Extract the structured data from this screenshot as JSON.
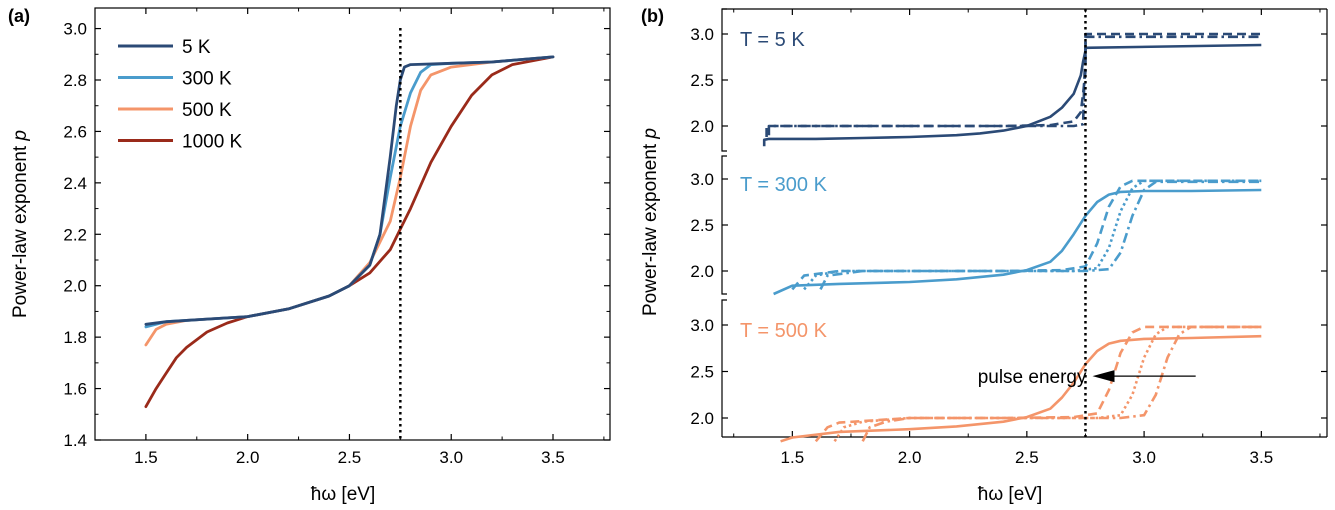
{
  "panel_a": {
    "label": "(a)",
    "ylabel": "Power-law exponent",
    "ylabel_var": "p",
    "xlabel": "ħω [eV]",
    "xticks": [
      "1.5",
      "2.0",
      "2.5",
      "3.0",
      "3.5"
    ],
    "yticks": [
      "1.4",
      "1.6",
      "1.8",
      "2.0",
      "2.2",
      "2.4",
      "2.6",
      "2.8",
      "3.0"
    ],
    "legend": [
      "5 K",
      "300 K",
      "500 K",
      "1000 K"
    ]
  },
  "panel_b": {
    "label": "(b)",
    "ylabel": "Power-law exponent",
    "ylabel_var": "p",
    "xlabel": "ħω [eV]",
    "xticks": [
      "1.5",
      "2.0",
      "2.5",
      "3.0",
      "3.5"
    ],
    "yticks": [
      "2.0",
      "2.5",
      "3.0"
    ],
    "subplot_labels": [
      "T = 5 K",
      "T = 300 K",
      "T = 500 K"
    ],
    "annotation": "pulse energy"
  },
  "colors": {
    "5 K": "#2b4a76",
    "300 K": "#4a9ccc",
    "500 K": "#f4956a",
    "1000 K": "#9a2a1a"
  },
  "chart_data": [
    {
      "type": "line",
      "title": "",
      "xlabel": "ħω [eV]",
      "ylabel": "Power-law exponent p",
      "xlim": [
        1.25,
        3.78
      ],
      "ylim": [
        1.4,
        3.08
      ],
      "grid": false,
      "legend_position": "top-left",
      "vertical_line": 2.75,
      "series": [
        {
          "name": "5 K",
          "x": [
            1.5,
            1.6,
            1.8,
            2.0,
            2.2,
            2.4,
            2.5,
            2.6,
            2.65,
            2.7,
            2.73,
            2.75,
            2.77,
            2.8,
            3.0,
            3.2,
            3.5
          ],
          "y": [
            1.85,
            1.86,
            1.87,
            1.88,
            1.91,
            1.96,
            2.0,
            2.08,
            2.2,
            2.5,
            2.7,
            2.8,
            2.85,
            2.86,
            2.865,
            2.87,
            2.89
          ]
        },
        {
          "name": "300 K",
          "x": [
            1.5,
            1.6,
            1.8,
            2.0,
            2.2,
            2.4,
            2.5,
            2.6,
            2.65,
            2.7,
            2.75,
            2.8,
            2.85,
            2.9,
            3.0,
            3.2,
            3.5
          ],
          "y": [
            1.84,
            1.86,
            1.87,
            1.88,
            1.91,
            1.96,
            2.0,
            2.08,
            2.2,
            2.42,
            2.62,
            2.75,
            2.83,
            2.86,
            2.865,
            2.87,
            2.89
          ]
        },
        {
          "name": "500 K",
          "x": [
            1.5,
            1.55,
            1.6,
            1.7,
            1.8,
            2.0,
            2.2,
            2.4,
            2.5,
            2.6,
            2.7,
            2.75,
            2.8,
            2.85,
            2.9,
            3.0,
            3.2,
            3.5
          ],
          "y": [
            1.77,
            1.83,
            1.85,
            1.865,
            1.87,
            1.88,
            1.91,
            1.96,
            2.0,
            2.09,
            2.25,
            2.42,
            2.62,
            2.76,
            2.82,
            2.85,
            2.87,
            2.89
          ]
        },
        {
          "name": "1000 K",
          "x": [
            1.5,
            1.55,
            1.6,
            1.65,
            1.7,
            1.8,
            1.9,
            2.0,
            2.2,
            2.4,
            2.5,
            2.6,
            2.7,
            2.75,
            2.8,
            2.9,
            3.0,
            3.1,
            3.2,
            3.3,
            3.5
          ],
          "y": [
            1.53,
            1.6,
            1.66,
            1.72,
            1.76,
            1.82,
            1.855,
            1.88,
            1.91,
            1.96,
            2.0,
            2.05,
            2.14,
            2.22,
            2.3,
            2.48,
            2.62,
            2.74,
            2.82,
            2.86,
            2.89
          ]
        }
      ]
    },
    {
      "type": "line",
      "title": "",
      "xlabel": "ħω [eV]",
      "ylabel": "Power-law exponent p",
      "xlim": [
        1.2,
        3.78
      ],
      "ylim_each_row": [
        1.75,
        3.15
      ],
      "grid": false,
      "vertical_line": 2.75,
      "rows": [
        {
          "label": "T = 5 K",
          "color": "#2b4a76",
          "series": [
            {
              "style": "solid",
              "x": [
                1.38,
                1.38,
                1.4,
                1.6,
                1.8,
                2.0,
                2.2,
                2.3,
                2.4,
                2.5,
                2.6,
                2.65,
                2.7,
                2.73,
                2.74,
                2.75,
                2.75,
                3.5
              ],
              "y": [
                1.78,
                1.85,
                1.86,
                1.86,
                1.87,
                1.88,
                1.9,
                1.92,
                1.95,
                2.0,
                2.1,
                2.2,
                2.35,
                2.55,
                2.7,
                2.82,
                2.85,
                2.88
              ]
            },
            {
              "style": "dashed",
              "x": [
                1.39,
                1.39,
                1.6,
                2.0,
                2.4,
                2.6,
                2.7,
                2.73,
                2.74,
                2.75,
                2.75,
                3.5
              ],
              "y": [
                1.88,
                2.0,
                2.0,
                2.0,
                2.0,
                2.01,
                2.05,
                2.15,
                2.35,
                2.6,
                3.0,
                3.0
              ]
            },
            {
              "style": "dashdot",
              "x": [
                1.4,
                1.4,
                1.6,
                2.0,
                2.4,
                2.6,
                2.7,
                2.74,
                2.745,
                2.75,
                2.75,
                3.5
              ],
              "y": [
                1.9,
                2.0,
                2.0,
                2.0,
                2.0,
                2.0,
                2.0,
                2.02,
                2.5,
                2.8,
                2.97,
                2.97
              ]
            }
          ]
        },
        {
          "label": "T = 300 K",
          "color": "#4a9ccc",
          "series": [
            {
              "style": "solid",
              "x": [
                1.42,
                1.5,
                1.7,
                2.0,
                2.2,
                2.4,
                2.5,
                2.6,
                2.65,
                2.7,
                2.75,
                2.8,
                2.85,
                2.9,
                3.0,
                3.2,
                3.5
              ],
              "y": [
                1.75,
                1.84,
                1.86,
                1.88,
                1.91,
                1.96,
                2.01,
                2.1,
                2.22,
                2.4,
                2.6,
                2.75,
                2.83,
                2.86,
                2.87,
                2.87,
                2.88
              ]
            },
            {
              "style": "dashed",
              "x": [
                1.5,
                1.55,
                1.7,
                2.0,
                2.4,
                2.65,
                2.75,
                2.8,
                2.85,
                2.9,
                2.95,
                3.5
              ],
              "y": [
                1.8,
                1.95,
                2.0,
                2.0,
                2.0,
                2.01,
                2.05,
                2.3,
                2.7,
                2.92,
                2.98,
                2.98
              ]
            },
            {
              "style": "dotted",
              "x": [
                1.55,
                1.6,
                1.7,
                2.0,
                2.4,
                2.7,
                2.8,
                2.85,
                2.9,
                2.95,
                3.0,
                3.5
              ],
              "y": [
                1.8,
                1.95,
                2.0,
                2.0,
                2.0,
                2.0,
                2.03,
                2.25,
                2.65,
                2.9,
                2.98,
                2.98
              ]
            },
            {
              "style": "dashdot",
              "x": [
                1.62,
                1.65,
                1.8,
                2.0,
                2.4,
                2.75,
                2.85,
                2.9,
                2.95,
                3.0,
                3.05,
                3.5
              ],
              "y": [
                1.8,
                1.95,
                2.0,
                2.0,
                2.0,
                2.0,
                2.02,
                2.2,
                2.6,
                2.88,
                2.97,
                2.97
              ]
            }
          ]
        },
        {
          "label": "T = 500 K",
          "color": "#f4956a",
          "series": [
            {
              "style": "solid",
              "x": [
                1.45,
                1.5,
                1.7,
                2.0,
                2.2,
                2.4,
                2.5,
                2.6,
                2.65,
                2.7,
                2.75,
                2.8,
                2.85,
                2.9,
                3.0,
                3.2,
                3.5
              ],
              "y": [
                1.75,
                1.79,
                1.85,
                1.88,
                1.91,
                1.96,
                2.01,
                2.1,
                2.22,
                2.38,
                2.58,
                2.72,
                2.8,
                2.83,
                2.85,
                2.86,
                2.88
              ]
            },
            {
              "style": "dashed",
              "x": [
                1.6,
                1.65,
                1.7,
                2.0,
                2.4,
                2.7,
                2.8,
                2.85,
                2.9,
                2.95,
                3.0,
                3.5
              ],
              "y": [
                1.75,
                1.9,
                1.95,
                2.0,
                2.0,
                2.01,
                2.05,
                2.3,
                2.7,
                2.92,
                2.98,
                2.98
              ]
            },
            {
              "style": "dotted",
              "x": [
                1.68,
                1.72,
                1.8,
                2.0,
                2.4,
                2.8,
                2.9,
                2.95,
                3.0,
                3.05,
                3.1,
                3.5
              ],
              "y": [
                1.75,
                1.9,
                1.96,
                2.0,
                2.0,
                2.0,
                2.03,
                2.25,
                2.65,
                2.9,
                2.98,
                2.98
              ]
            },
            {
              "style": "dashdot",
              "x": [
                1.8,
                1.83,
                1.9,
                2.0,
                2.4,
                2.9,
                3.0,
                3.05,
                3.1,
                3.15,
                3.2,
                3.5
              ],
              "y": [
                1.75,
                1.9,
                1.96,
                2.0,
                2.0,
                2.0,
                2.03,
                2.25,
                2.65,
                2.9,
                2.98,
                2.98
              ]
            }
          ]
        }
      ],
      "arrow": {
        "from_x": 3.22,
        "to_x": 2.78,
        "y": 2.45,
        "label": "pulse energy"
      }
    }
  ]
}
